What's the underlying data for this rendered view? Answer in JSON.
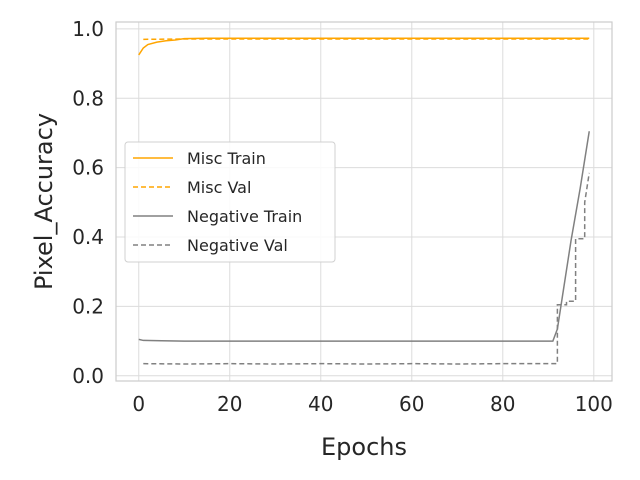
{
  "chart_data": {
    "type": "line",
    "title": "",
    "xlabel": "Epochs",
    "ylabel": "Pixel_Accuracy",
    "xlim": [
      -5,
      104
    ],
    "ylim": [
      -0.015,
      1.02
    ],
    "xticks": [
      0,
      20,
      40,
      60,
      80,
      100
    ],
    "yticks": [
      0.0,
      0.2,
      0.4,
      0.6,
      0.8,
      1.0
    ],
    "xtick_labels": [
      "0",
      "20",
      "40",
      "60",
      "80",
      "100"
    ],
    "ytick_labels": [
      "0.0",
      "0.2",
      "0.4",
      "0.6",
      "0.8",
      "1.0"
    ],
    "grid": true,
    "legend_position": "center-left",
    "series": [
      {
        "name": "Misc Train",
        "color": "#FFA500",
        "dash": "solid",
        "points": [
          [
            0,
            0.925
          ],
          [
            1,
            0.945
          ],
          [
            2,
            0.955
          ],
          [
            4,
            0.962
          ],
          [
            6,
            0.966
          ],
          [
            8,
            0.968
          ],
          [
            10,
            0.972
          ],
          [
            15,
            0.973
          ],
          [
            20,
            0.973
          ],
          [
            40,
            0.973
          ],
          [
            60,
            0.973
          ],
          [
            80,
            0.973
          ],
          [
            99,
            0.973
          ]
        ]
      },
      {
        "name": "Misc Val",
        "color": "#FFA500",
        "dash": "dashed",
        "points": [
          [
            1,
            0.97
          ],
          [
            10,
            0.971
          ],
          [
            20,
            0.971
          ],
          [
            40,
            0.971
          ],
          [
            60,
            0.971
          ],
          [
            80,
            0.971
          ],
          [
            99,
            0.971
          ]
        ]
      },
      {
        "name": "Negative Train",
        "color": "#808080",
        "dash": "solid",
        "points": [
          [
            0,
            0.105
          ],
          [
            1,
            0.102
          ],
          [
            5,
            0.101
          ],
          [
            10,
            0.1
          ],
          [
            20,
            0.1
          ],
          [
            30,
            0.1
          ],
          [
            40,
            0.1
          ],
          [
            50,
            0.1
          ],
          [
            60,
            0.1
          ],
          [
            70,
            0.1
          ],
          [
            80,
            0.1
          ],
          [
            90,
            0.1
          ],
          [
            91,
            0.1
          ],
          [
            92,
            0.135
          ],
          [
            93,
            0.22
          ],
          [
            95,
            0.39
          ],
          [
            97,
            0.54
          ],
          [
            99,
            0.705
          ]
        ]
      },
      {
        "name": "Negative Val",
        "color": "#808080",
        "dash": "dashed",
        "points": [
          [
            1,
            0.035
          ],
          [
            10,
            0.034
          ],
          [
            20,
            0.035
          ],
          [
            30,
            0.034
          ],
          [
            40,
            0.035
          ],
          [
            50,
            0.034
          ],
          [
            60,
            0.035
          ],
          [
            70,
            0.034
          ],
          [
            80,
            0.035
          ],
          [
            91,
            0.035
          ],
          [
            92,
            0.035
          ],
          [
            92,
            0.205
          ],
          [
            94,
            0.205
          ],
          [
            94,
            0.215
          ],
          [
            96,
            0.215
          ],
          [
            96,
            0.395
          ],
          [
            98,
            0.395
          ],
          [
            98,
            0.5
          ],
          [
            99,
            0.585
          ]
        ]
      }
    ]
  }
}
